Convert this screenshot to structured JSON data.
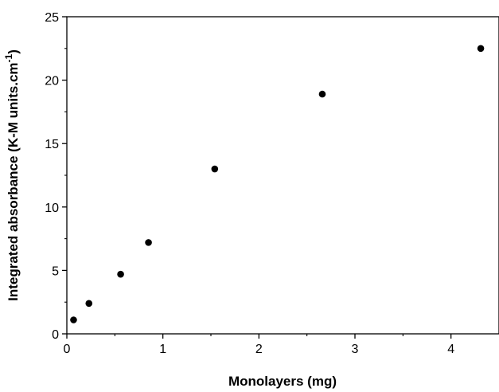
{
  "chart_data": {
    "type": "scatter",
    "title": "",
    "xlabel": "Monolayers (mg)",
    "ylabel": {
      "main": "Integrated absorbance (K-M units.cm",
      "sup": "-1",
      "tail": ")"
    },
    "xlim": [
      0,
      4.5
    ],
    "ylim": [
      0,
      25
    ],
    "x_ticks": [
      0,
      1,
      2,
      3,
      4
    ],
    "y_ticks": [
      0,
      5,
      10,
      15,
      20,
      25
    ],
    "grid": false,
    "legend": "none",
    "marker_color": "#000000",
    "series": [
      {
        "x": [
          0.07,
          0.23,
          0.56,
          0.85,
          1.54,
          2.66,
          4.31
        ],
        "y": [
          1.1,
          2.4,
          4.7,
          7.2,
          13.0,
          18.9,
          22.5
        ]
      }
    ]
  }
}
